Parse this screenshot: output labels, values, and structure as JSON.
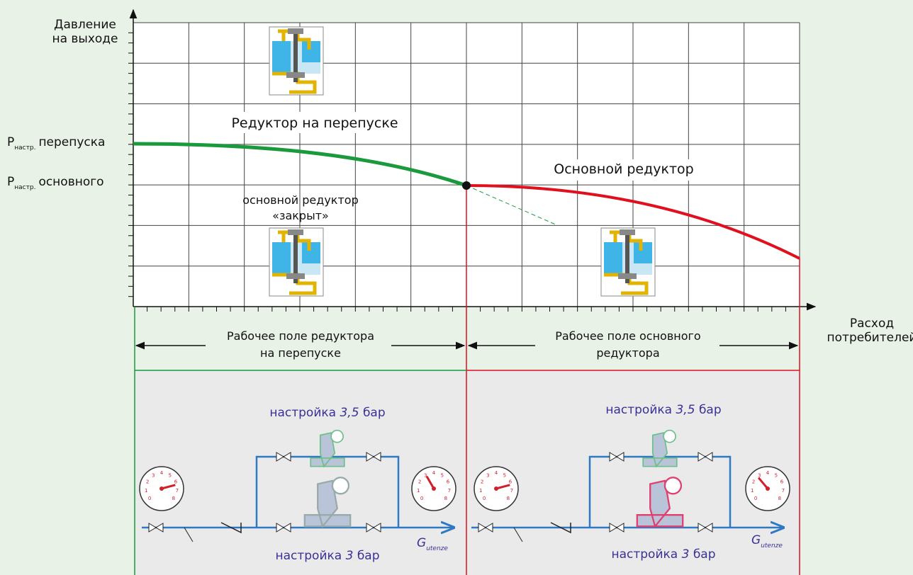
{
  "y_axis_label": [
    "Давление",
    "на выходе"
  ],
  "x_axis_label": [
    "Расход",
    "потребителей"
  ],
  "p_bypass": {
    "symbol": "P",
    "subscript": "настр.",
    "text": "перепуска"
  },
  "p_main": {
    "symbol": "P",
    "subscript": "настр.",
    "text": "основного"
  },
  "zone_bypass_label": "Редуктор на перепуске",
  "main_closed_label": [
    "основной редуктор",
    "«закрыт»"
  ],
  "zone_main_label": "Основной редуктор",
  "field_bypass": [
    "Рабочее поле редуктора",
    "на перепуске"
  ],
  "field_main": [
    "Рабочее поле основного",
    "редуктора"
  ],
  "setting_bypass": {
    "prefix": "настройка",
    "value": "3,5",
    "unit": "бар"
  },
  "setting_main": {
    "prefix": "настройка",
    "value": "3",
    "unit": "бар"
  },
  "flow_symbol": {
    "symbol": "G",
    "subscript": "utenze"
  },
  "gauge_scale": [
    "0",
    "1",
    "2",
    "3",
    "4",
    "5",
    "6",
    "7",
    "8"
  ]
}
